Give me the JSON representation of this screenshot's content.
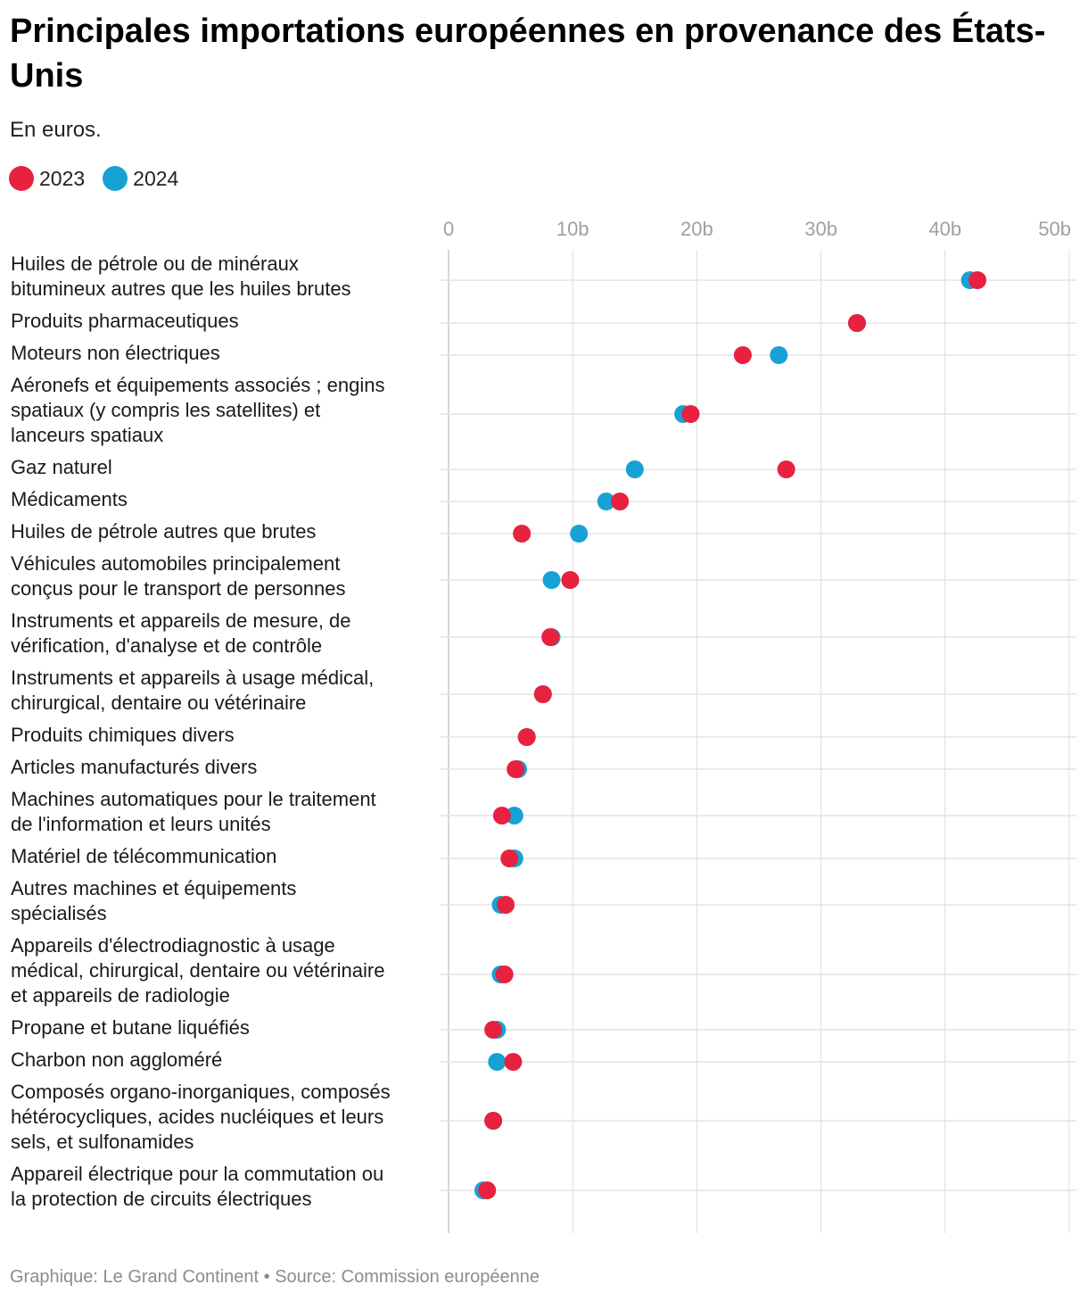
{
  "header": {
    "title": "Principales importations européennes en provenance des États-Unis",
    "subtitle": "En euros."
  },
  "legend": {
    "items": [
      {
        "label": "2023",
        "color": "#e8213f"
      },
      {
        "label": "2024",
        "color": "#17a2d6"
      }
    ]
  },
  "footer": {
    "credit": "Graphique: Le Grand Continent • Source: Commission européenne"
  },
  "chart_data": {
    "type": "dot",
    "title": "Principales importations européennes en provenance des États-Unis",
    "subtitle": "En euros.",
    "xlabel": "",
    "ylabel": "",
    "xlim": [
      0,
      50
    ],
    "unit": "milliards d'euros",
    "x_ticks": [
      0,
      10,
      20,
      30,
      40,
      50
    ],
    "x_tick_labels": [
      "0",
      "10b",
      "20b",
      "30b",
      "40b",
      "50b"
    ],
    "grid": true,
    "legend_position": "top-left",
    "series": [
      {
        "name": "2023",
        "color": "#e8213f"
      },
      {
        "name": "2024",
        "color": "#17a2d6"
      }
    ],
    "categories": [
      {
        "label": "Huiles de pétrole ou de minéraux bitumineux autres que les huiles brutes",
        "lines": [
          "Huiles de pétrole ou de minéraux",
          "bitumineux autres que les huiles brutes"
        ],
        "v2023": 42.6,
        "v2024": 42.0
      },
      {
        "label": "Produits pharmaceutiques",
        "lines": [
          "Produits pharmaceutiques"
        ],
        "v2023": 32.9,
        "v2024": 32.9
      },
      {
        "label": "Moteurs non électriques",
        "lines": [
          "Moteurs non électriques"
        ],
        "v2023": 23.7,
        "v2024": 26.6
      },
      {
        "label": "Aéronefs et équipements associés ; engins spatiaux (y compris les satellites) et lanceurs spatiaux",
        "lines": [
          "Aéronefs et équipements associés ; engins",
          "spatiaux (y compris les satellites) et",
          "lanceurs spatiaux"
        ],
        "v2023": 19.5,
        "v2024": 18.9
      },
      {
        "label": "Gaz naturel",
        "lines": [
          "Gaz naturel"
        ],
        "v2023": 27.2,
        "v2024": 15.0
      },
      {
        "label": "Médicaments",
        "lines": [
          "Médicaments"
        ],
        "v2023": 13.8,
        "v2024": 12.7
      },
      {
        "label": "Huiles de pétrole autres que brutes",
        "lines": [
          "Huiles de pétrole autres que brutes"
        ],
        "v2023": 5.9,
        "v2024": 10.5
      },
      {
        "label": "Véhicules automobiles principalement conçus pour le transport de personnes",
        "lines": [
          "Véhicules automobiles principalement",
          "conçus pour le transport de personnes"
        ],
        "v2023": 9.8,
        "v2024": 8.3
      },
      {
        "label": "Instruments et appareils de mesure, de vérification, d'analyse et de contrôle",
        "lines": [
          "Instruments et appareils de mesure, de",
          "vérification, d'analyse et de contrôle"
        ],
        "v2023": 8.2,
        "v2024": 8.3
      },
      {
        "label": "Instruments et appareils à usage médical, chirurgical, dentaire ou vétérinaire",
        "lines": [
          "Instruments et appareils à usage médical,",
          "chirurgical, dentaire ou vétérinaire"
        ],
        "v2023": 7.6,
        "v2024": 7.6
      },
      {
        "label": "Produits chimiques divers",
        "lines": [
          "Produits chimiques divers"
        ],
        "v2023": 6.3,
        "v2024": 6.3
      },
      {
        "label": "Articles manufacturés divers",
        "lines": [
          "Articles manufacturés divers"
        ],
        "v2023": 5.4,
        "v2024": 5.6
      },
      {
        "label": "Machines automatiques pour le traitement de l'information et leurs unités",
        "lines": [
          "Machines automatiques pour le traitement",
          "de l'information et leurs unités"
        ],
        "v2023": 4.3,
        "v2024": 5.3
      },
      {
        "label": "Matériel de télécommunication",
        "lines": [
          "Matériel de télécommunication"
        ],
        "v2023": 4.9,
        "v2024": 5.3
      },
      {
        "label": "Autres machines et équipements spécialisés",
        "lines": [
          "Autres machines et équipements",
          "spécialisés"
        ],
        "v2023": 4.6,
        "v2024": 4.2
      },
      {
        "label": "Appareils d'électrodiagnostic à usage médical, chirurgical, dentaire ou vétérinaire et appareils de radiologie",
        "lines": [
          "Appareils d'électrodiagnostic à usage",
          "médical, chirurgical, dentaire ou vétérinaire",
          "et appareils de radiologie"
        ],
        "v2023": 4.5,
        "v2024": 4.2
      },
      {
        "label": "Propane et butane liquéfiés",
        "lines": [
          "Propane et butane liquéfiés"
        ],
        "v2023": 3.6,
        "v2024": 3.9
      },
      {
        "label": "Charbon non aggloméré",
        "lines": [
          "Charbon non aggloméré"
        ],
        "v2023": 5.2,
        "v2024": 3.9
      },
      {
        "label": "Composés organo-inorganiques, composés hétérocycliques, acides nucléiques et leurs sels, et sulfonamides",
        "lines": [
          "Composés organo-inorganiques, composés",
          "hétérocycliques, acides nucléiques et leurs",
          "sels, et sulfonamides"
        ],
        "v2023": 3.6,
        "v2024": 3.6
      },
      {
        "label": "Appareil électrique pour la commutation ou la protection de circuits électriques",
        "lines": [
          "Appareil électrique pour la commutation ou",
          "la protection de circuits électriques"
        ],
        "v2023": 3.1,
        "v2024": 2.8
      }
    ]
  }
}
